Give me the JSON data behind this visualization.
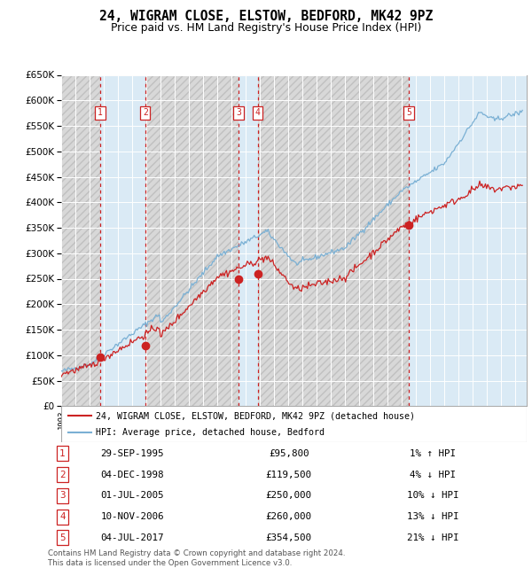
{
  "title": "24, WIGRAM CLOSE, ELSTOW, BEDFORD, MK42 9PZ",
  "subtitle": "Price paid vs. HM Land Registry's House Price Index (HPI)",
  "ylim": [
    0,
    650000
  ],
  "yticks": [
    0,
    50000,
    100000,
    150000,
    200000,
    250000,
    300000,
    350000,
    400000,
    450000,
    500000,
    550000,
    600000,
    650000
  ],
  "xlim_start": 1993.0,
  "xlim_end": 2025.8,
  "hpi_color": "#7ab0d4",
  "price_color": "#cc2222",
  "bg_hatch_color": "#d4d4d4",
  "bg_blue_color": "#daeaf5",
  "grid_color": "#ffffff",
  "sale_dates_decimal": [
    1995.747,
    1998.922,
    2005.497,
    2006.858,
    2017.497
  ],
  "sale_prices": [
    95800,
    119500,
    250000,
    260000,
    354500
  ],
  "sale_labels": [
    "1",
    "2",
    "3",
    "4",
    "5"
  ],
  "vline_color": "#cc2222",
  "legend_label_price": "24, WIGRAM CLOSE, ELSTOW, BEDFORD, MK42 9PZ (detached house)",
  "legend_label_hpi": "HPI: Average price, detached house, Bedford",
  "table_entries": [
    {
      "num": "1",
      "date": "29-SEP-1995",
      "price": "£95,800",
      "rel": "1% ↑ HPI"
    },
    {
      "num": "2",
      "date": "04-DEC-1998",
      "price": "£119,500",
      "rel": "4% ↓ HPI"
    },
    {
      "num": "3",
      "date": "01-JUL-2005",
      "price": "£250,000",
      "rel": "10% ↓ HPI"
    },
    {
      "num": "4",
      "date": "10-NOV-2006",
      "price": "£260,000",
      "rel": "13% ↓ HPI"
    },
    {
      "num": "5",
      "date": "04-JUL-2017",
      "price": "£354,500",
      "rel": "21% ↓ HPI"
    }
  ],
  "footnote": "Contains HM Land Registry data © Crown copyright and database right 2024.\nThis data is licensed under the Open Government Licence v3.0."
}
